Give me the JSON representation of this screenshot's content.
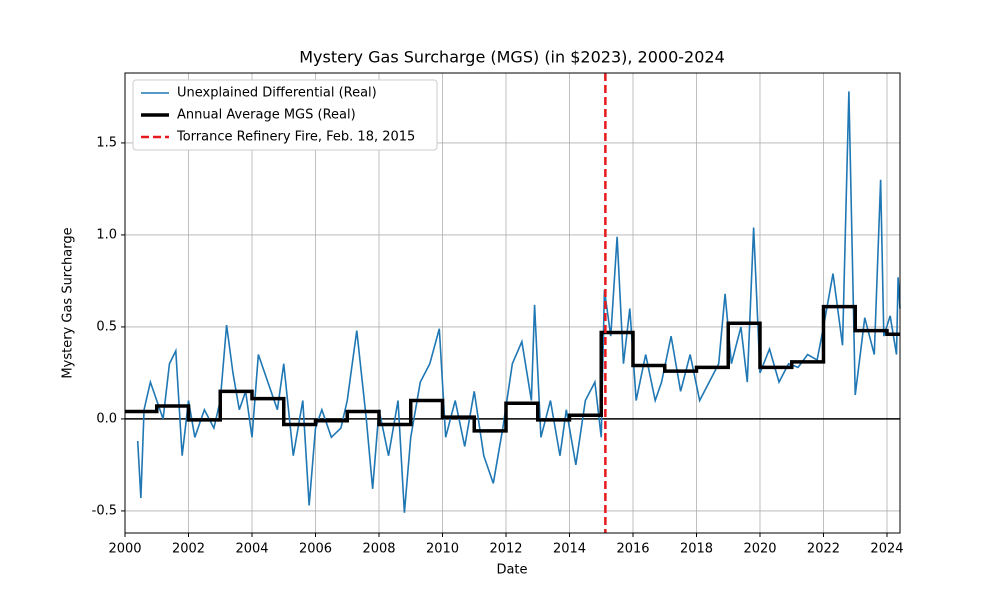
{
  "chart_data": {
    "type": "line",
    "title": "Mystery Gas Surcharge (MGS) (in $2023), 2000-2024",
    "xlabel": "Date",
    "ylabel": "Mystery Gas Surcharge",
    "xlim": [
      2000,
      2024.41
    ],
    "xticks": [
      2000,
      2002,
      2004,
      2006,
      2008,
      2010,
      2012,
      2014,
      2016,
      2018,
      2020,
      2022,
      2024
    ],
    "ylim": [
      -0.62,
      1.88
    ],
    "yticks": [
      -0.5,
      0.0,
      0.5,
      1.0,
      1.5
    ],
    "grid": true,
    "legend": "upper-left",
    "hline": 0,
    "series": [
      {
        "name": "Unexplained Differential (Real)",
        "color": "#1f77b4",
        "style": "solid",
        "x": [
          2000.4,
          2000.5,
          2000.6,
          2000.8,
          2001.0,
          2001.2,
          2001.4,
          2001.6,
          2001.8,
          2002.0,
          2002.2,
          2002.5,
          2002.8,
          2003.0,
          2003.2,
          2003.4,
          2003.6,
          2003.8,
          2004.0,
          2004.2,
          2004.5,
          2004.8,
          2005.0,
          2005.3,
          2005.6,
          2005.8,
          2006.0,
          2006.2,
          2006.5,
          2006.8,
          2007.0,
          2007.3,
          2007.6,
          2007.8,
          2008.0,
          2008.3,
          2008.6,
          2008.8,
          2009.0,
          2009.3,
          2009.6,
          2009.9,
          2010.1,
          2010.4,
          2010.7,
          2011.0,
          2011.3,
          2011.6,
          2011.9,
          2012.2,
          2012.5,
          2012.8,
          2012.9,
          2013.1,
          2013.4,
          2013.7,
          2013.9,
          2014.2,
          2014.5,
          2014.8,
          2015.0,
          2015.1,
          2015.3,
          2015.5,
          2015.7,
          2015.9,
          2016.1,
          2016.4,
          2016.7,
          2016.9,
          2017.2,
          2017.5,
          2017.8,
          2018.1,
          2018.4,
          2018.7,
          2018.9,
          2019.1,
          2019.4,
          2019.6,
          2019.8,
          2020.0,
          2020.3,
          2020.6,
          2020.9,
          2021.2,
          2021.5,
          2021.8,
          2022.0,
          2022.3,
          2022.6,
          2022.8,
          2023.0,
          2023.3,
          2023.6,
          2023.8,
          2023.9,
          2024.1,
          2024.3,
          2024.35,
          2024.41
        ],
        "values": [
          -0.12,
          -0.43,
          0.05,
          0.2,
          0.1,
          0.0,
          0.3,
          0.37,
          -0.2,
          0.1,
          -0.1,
          0.05,
          -0.05,
          0.1,
          0.51,
          0.25,
          0.05,
          0.15,
          -0.1,
          0.35,
          0.2,
          0.05,
          0.3,
          -0.2,
          0.1,
          -0.47,
          -0.05,
          0.05,
          -0.1,
          -0.05,
          0.1,
          0.48,
          0.0,
          -0.38,
          0.05,
          -0.2,
          0.1,
          -0.51,
          -0.1,
          0.2,
          0.3,
          0.49,
          -0.1,
          0.1,
          -0.15,
          0.15,
          -0.2,
          -0.35,
          -0.05,
          0.3,
          0.42,
          0.1,
          0.62,
          -0.1,
          0.1,
          -0.2,
          0.05,
          -0.25,
          0.1,
          0.2,
          -0.1,
          0.7,
          0.45,
          0.99,
          0.3,
          0.6,
          0.1,
          0.35,
          0.1,
          0.2,
          0.45,
          0.15,
          0.35,
          0.1,
          0.2,
          0.3,
          0.68,
          0.3,
          0.5,
          0.2,
          1.04,
          0.25,
          0.38,
          0.2,
          0.3,
          0.28,
          0.35,
          0.32,
          0.5,
          0.79,
          0.4,
          1.78,
          0.13,
          0.55,
          0.35,
          1.3,
          0.45,
          0.56,
          0.35,
          0.77,
          0.6
        ]
      },
      {
        "name": "Annual Average MGS (Real)",
        "color": "#000000",
        "style": "step",
        "x": [
          2000,
          2001,
          2002,
          2003,
          2004,
          2005,
          2006,
          2007,
          2008,
          2009,
          2010,
          2011,
          2012,
          2013,
          2014,
          2015,
          2016,
          2017,
          2018,
          2019,
          2020,
          2021,
          2022,
          2023,
          2024
        ],
        "values": [
          0.04,
          0.07,
          -0.005,
          0.15,
          0.11,
          -0.03,
          -0.01,
          0.04,
          -0.03,
          0.1,
          0.01,
          -0.065,
          0.085,
          -0.005,
          0.02,
          0.47,
          0.29,
          0.26,
          0.28,
          0.52,
          0.28,
          0.31,
          0.61,
          0.48,
          0.46
        ]
      }
    ],
    "vline": {
      "x": 2015.13,
      "label": "Torrance Refinery Fire, Feb. 18, 2015",
      "color": "#e8191c"
    }
  }
}
